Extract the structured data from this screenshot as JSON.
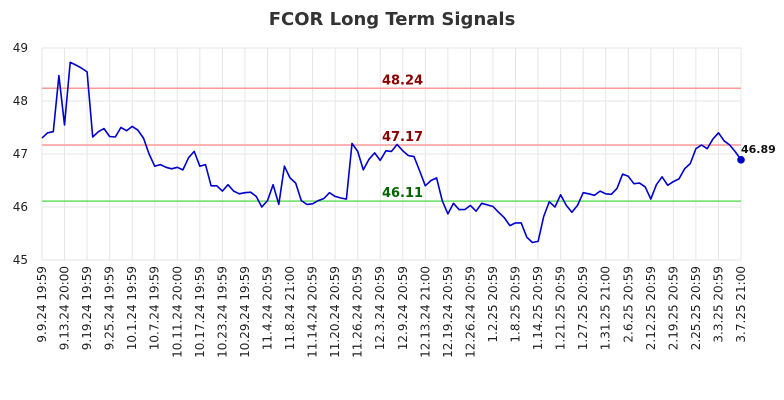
{
  "chart_data": {
    "type": "line",
    "title": "FCOR Long Term Signals",
    "xlabel": "",
    "ylabel": "",
    "ylim": [
      45,
      49
    ],
    "yticks": [
      "45",
      "46",
      "47",
      "48",
      "49"
    ],
    "grid": true,
    "x_tick_labels": [
      "9.9.24 19:59",
      "9.13.24 20:00",
      "9.19.24 19:59",
      "9.25.24 19:59",
      "10.1.24 19:59",
      "10.7.24 19:59",
      "10.11.24 20:00",
      "10.17.24 19:59",
      "10.23.24 19:59",
      "10.29.24 19:59",
      "11.4.24 20:59",
      "11.8.24 21:00",
      "11.14.24 20:59",
      "11.20.24 20:59",
      "11.26.24 20:59",
      "12.3.24 20:59",
      "12.9.24 20:59",
      "12.13.24 21:00",
      "12.19.24 20:59",
      "12.26.24 20:59",
      "1.2.25 20:59",
      "1.8.25 20:59",
      "1.14.25 20:59",
      "1.21.25 20:59",
      "1.27.25 20:59",
      "1.31.25 21:00",
      "2.6.25 20:59",
      "2.12.25 20:59",
      "2.19.25 20:59",
      "2.25.25 20:59",
      "3.3.25 20:59",
      "3.7.25 21:00"
    ],
    "reference_lines": [
      {
        "value": 48.24,
        "label": "48.24",
        "color": "#ff9999",
        "label_color": "#8b0000"
      },
      {
        "value": 47.17,
        "label": "47.17",
        "color": "#ff9999",
        "label_color": "#8b0000"
      },
      {
        "value": 46.11,
        "label": "46.11",
        "color": "#66dd66",
        "label_color": "#006400"
      }
    ],
    "series": [
      {
        "color": "#0000cc",
        "values": [
          47.3,
          47.4,
          47.42,
          48.48,
          47.55,
          48.73,
          48.68,
          48.62,
          48.55,
          47.32,
          47.42,
          47.48,
          47.33,
          47.32,
          47.5,
          47.44,
          47.52,
          47.45,
          47.3,
          47.0,
          46.77,
          46.8,
          46.75,
          46.72,
          46.75,
          46.7,
          46.93,
          47.05,
          46.77,
          46.8,
          46.4,
          46.4,
          46.3,
          46.42,
          46.3,
          46.25,
          46.27,
          46.28,
          46.2,
          46.0,
          46.12,
          46.42,
          46.05,
          46.77,
          46.55,
          46.45,
          46.12,
          46.05,
          46.06,
          46.12,
          46.16,
          46.27,
          46.2,
          46.17,
          46.15,
          47.2,
          47.05,
          46.7,
          46.9,
          47.02,
          46.88,
          47.06,
          47.05,
          47.18,
          47.06,
          46.97,
          46.95,
          46.68,
          46.4,
          46.5,
          46.55,
          46.12,
          45.87,
          46.07,
          45.95,
          45.95,
          46.03,
          45.92,
          46.07,
          46.04,
          46.01,
          45.9,
          45.8,
          45.65,
          45.7,
          45.7,
          45.43,
          45.33,
          45.35,
          45.82,
          46.1,
          46.0,
          46.23,
          46.03,
          45.9,
          46.03,
          46.27,
          46.25,
          46.22,
          46.3,
          46.25,
          46.24,
          46.35,
          46.62,
          46.58,
          46.44,
          46.45,
          46.38,
          46.15,
          46.42,
          46.57,
          46.41,
          46.48,
          46.53,
          46.72,
          46.82,
          47.1,
          47.17,
          47.1,
          47.28,
          47.4,
          47.25,
          47.17,
          47.04,
          46.89
        ]
      }
    ],
    "last_value_label": "46.89"
  }
}
